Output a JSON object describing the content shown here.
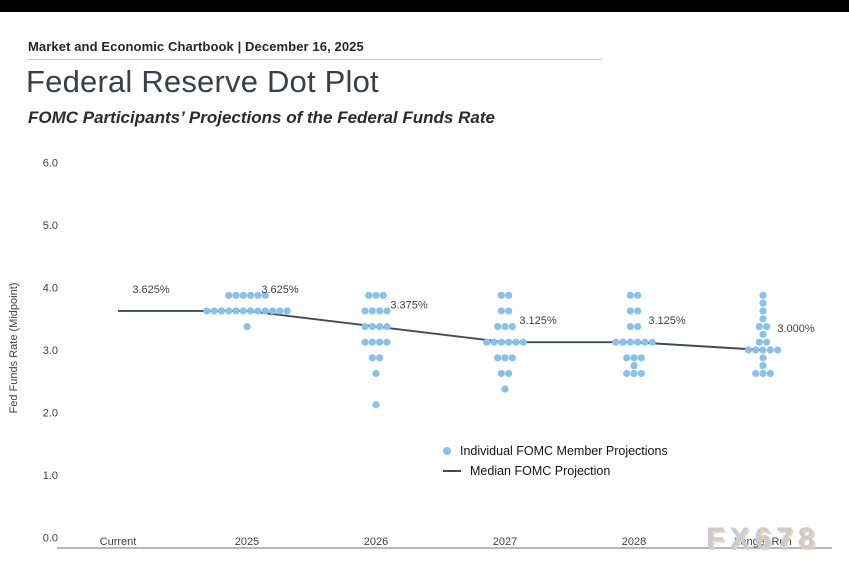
{
  "page": {
    "header": "Market and Economic Chartbook | December 16, 2025",
    "title": "Federal Reserve Dot Plot",
    "subtitle": "FOMC Participants’ Projections of the Federal Funds Rate",
    "watermark": "FX678"
  },
  "legend": {
    "dots_label": "Individual FOMC Member Projections",
    "median_label": "Median FOMC Projection"
  },
  "colors": {
    "dot": "#8AC1E9",
    "median_line": "#3E4B59",
    "axis_line": "#98A2AA",
    "tick_text": "#3F3F3F"
  },
  "chart_data": {
    "type": "scatter",
    "title": "Federal Reserve Dot Plot",
    "subtitle": "FOMC Participants’ Projections of the Federal Funds Rate",
    "ylabel": "Fed Funds Rate (Midpoint)",
    "y_ticks": [
      6.0,
      5.0,
      4.0,
      3.0,
      2.0,
      1.0,
      0.0
    ],
    "ylim": [
      0.0,
      6.5
    ],
    "grid": false,
    "legend_position": "lower center",
    "categories": [
      "Current",
      "2025",
      "2026",
      "2027",
      "2028",
      "Longer Run"
    ],
    "dots": [
      {
        "category": "Current",
        "points": []
      },
      {
        "category": "2025",
        "points": [
          {
            "value": 3.875,
            "count": 6
          },
          {
            "value": 3.625,
            "count": 12
          },
          {
            "value": 3.375,
            "count": 1
          }
        ]
      },
      {
        "category": "2026",
        "points": [
          {
            "value": 3.875,
            "count": 3
          },
          {
            "value": 3.625,
            "count": 4
          },
          {
            "value": 3.375,
            "count": 4
          },
          {
            "value": 3.125,
            "count": 4
          },
          {
            "value": 2.875,
            "count": 2
          },
          {
            "value": 2.625,
            "count": 1
          },
          {
            "value": 2.125,
            "count": 1
          }
        ]
      },
      {
        "category": "2027",
        "points": [
          {
            "value": 3.875,
            "count": 2
          },
          {
            "value": 3.625,
            "count": 2
          },
          {
            "value": 3.375,
            "count": 3
          },
          {
            "value": 3.125,
            "count": 6
          },
          {
            "value": 2.875,
            "count": 3
          },
          {
            "value": 2.625,
            "count": 2
          },
          {
            "value": 2.375,
            "count": 1
          }
        ]
      },
      {
        "category": "2028",
        "points": [
          {
            "value": 3.875,
            "count": 2
          },
          {
            "value": 3.625,
            "count": 2
          },
          {
            "value": 3.375,
            "count": 2
          },
          {
            "value": 3.125,
            "count": 6
          },
          {
            "value": 2.875,
            "count": 3
          },
          {
            "value": 2.75,
            "count": 1
          },
          {
            "value": 2.625,
            "count": 3
          }
        ]
      },
      {
        "category": "Longer Run",
        "points": [
          {
            "value": 3.875,
            "count": 1
          },
          {
            "value": 3.75,
            "count": 1
          },
          {
            "value": 3.625,
            "count": 1
          },
          {
            "value": 3.5,
            "count": 1
          },
          {
            "value": 3.375,
            "count": 2
          },
          {
            "value": 3.25,
            "count": 1
          },
          {
            "value": 3.125,
            "count": 2
          },
          {
            "value": 3.0,
            "count": 5
          },
          {
            "value": 2.875,
            "count": 1
          },
          {
            "value": 2.75,
            "count": 1
          },
          {
            "value": 2.625,
            "count": 3
          }
        ]
      }
    ],
    "median": {
      "name": "Median FOMC Projection",
      "values": [
        3.625,
        3.625,
        3.375,
        3.125,
        3.125,
        3.0
      ],
      "labels": [
        "3.625%",
        "3.625%",
        "3.375%",
        "3.125%",
        "3.125%",
        "3.000%"
      ]
    }
  }
}
